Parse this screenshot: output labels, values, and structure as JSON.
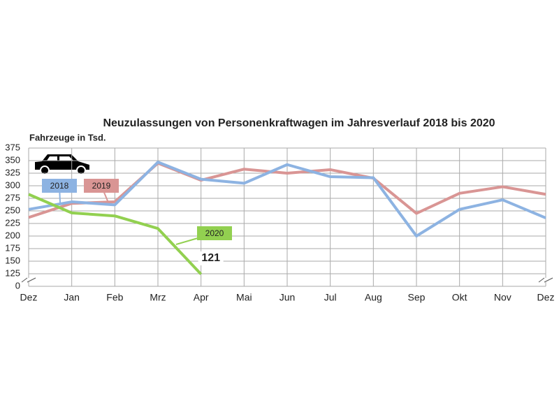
{
  "chart_data": {
    "type": "line",
    "title": "Neuzulassungen von Personenkraftwagen im Jahresverlauf 2018 bis 2020",
    "y_label": "Fahrzeuge in Tsd.",
    "categories": [
      "Dez",
      "Jan",
      "Feb",
      "Mrz",
      "Apr",
      "Mai",
      "Jun",
      "Jul",
      "Aug",
      "Sep",
      "Okt",
      "Nov",
      "Dez"
    ],
    "series": [
      {
        "name": "2018",
        "color": "#8db3e2",
        "values": [
          253,
          268,
          262,
          347,
          313,
          305,
          342,
          318,
          316,
          200,
          253,
          272,
          236
        ]
      },
      {
        "name": "2019",
        "color": "#d99594",
        "values": [
          237,
          265,
          268,
          345,
          311,
          333,
          325,
          332,
          315,
          245,
          285,
          298,
          283
        ]
      },
      {
        "name": "2020",
        "color": "#92d050",
        "values": [
          283,
          246,
          240,
          215,
          121,
          null,
          null,
          null,
          null,
          null,
          null,
          null,
          null
        ]
      }
    ],
    "ylim": [
      0,
      375
    ],
    "yticks": [
      0,
      125,
      150,
      175,
      200,
      225,
      250,
      275,
      300,
      325,
      350,
      375
    ],
    "axis_break": true,
    "grid": true
  }
}
